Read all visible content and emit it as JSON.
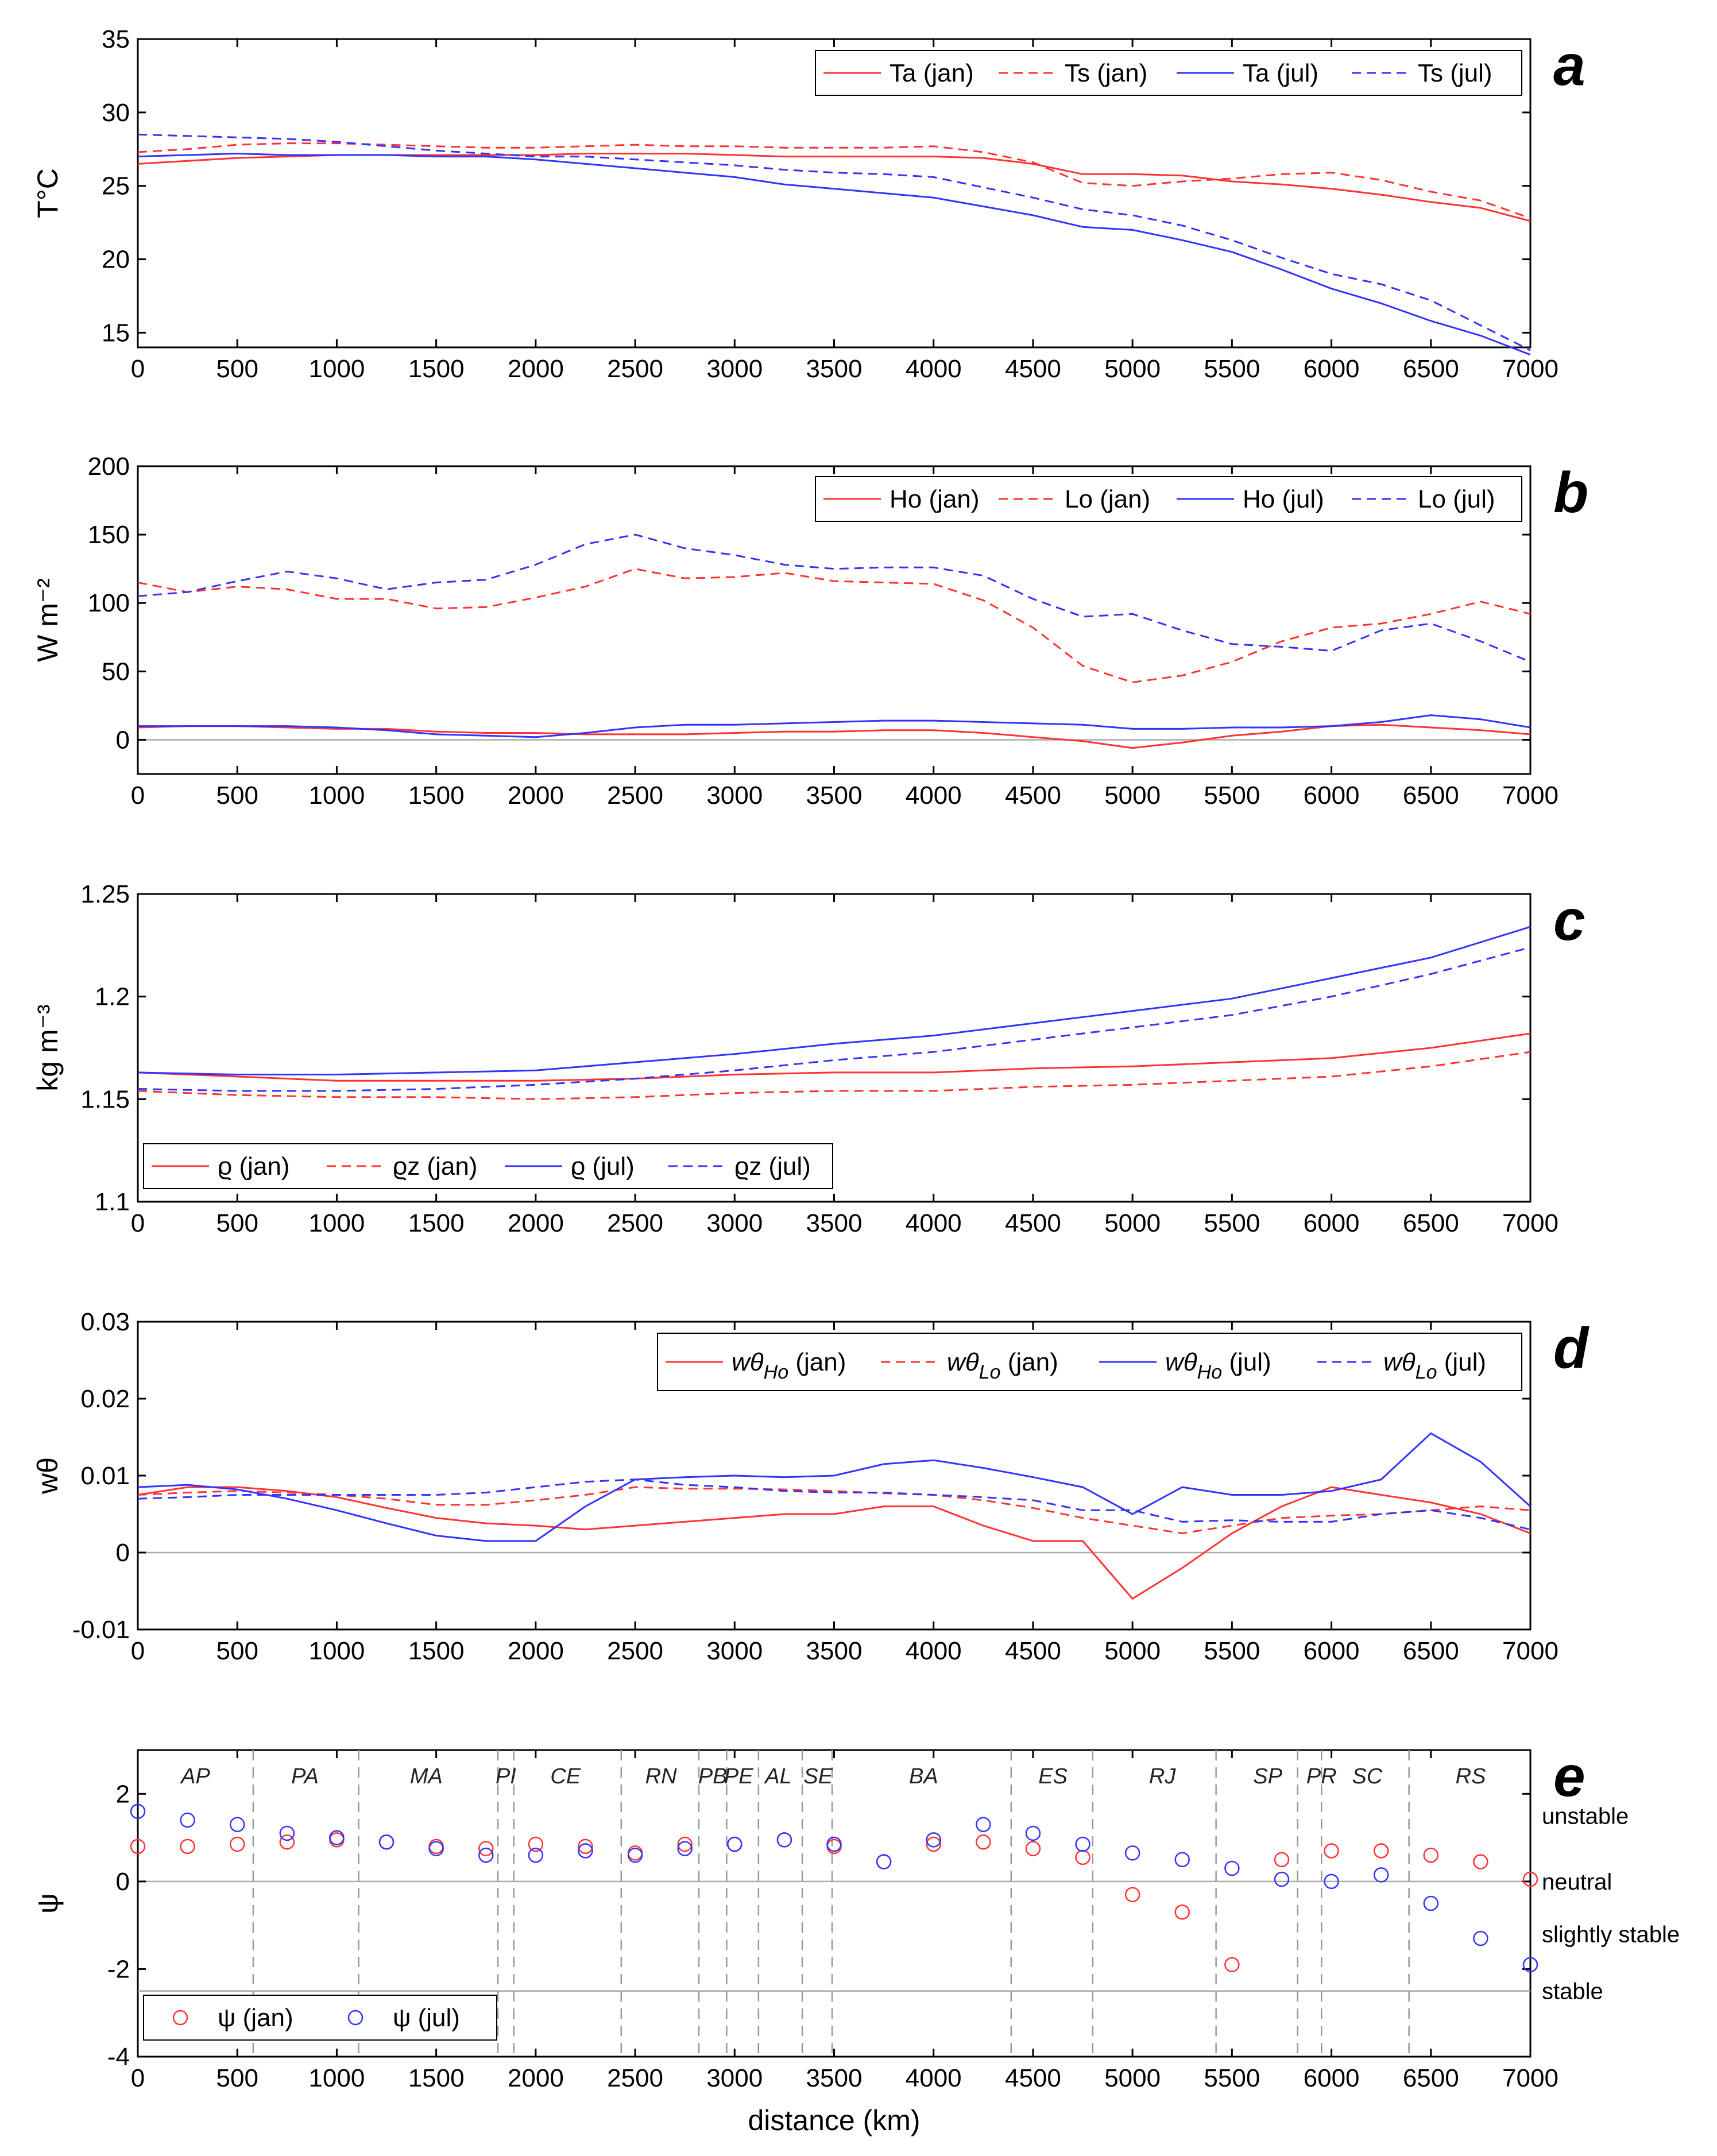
{
  "figure": {
    "xlabel": "distance (km)",
    "xticks": [
      0,
      500,
      1000,
      1500,
      2000,
      2500,
      3000,
      3500,
      4000,
      4500,
      5000,
      5500,
      6000,
      6500,
      7000
    ],
    "colors": {
      "jan": "#ff3333",
      "jul": "#3333ff",
      "zero": "#aaaaaa",
      "region": "#999999"
    }
  },
  "chart_data": [
    {
      "letter": "a",
      "type": "line",
      "ylabel": "T°C",
      "ylim": [
        14,
        35
      ],
      "yticks": [
        15,
        20,
        25,
        30,
        35
      ],
      "xlim": [
        0,
        7000
      ],
      "legend": {
        "placement": "top-right",
        "entries": [
          "Ta (jan)",
          "Ts (jan)",
          "Ta (jul)",
          "Ts (jul)"
        ]
      },
      "x": [
        0,
        250,
        500,
        750,
        1000,
        1250,
        1500,
        1750,
        2000,
        2250,
        2500,
        2750,
        3000,
        3250,
        3500,
        3750,
        4000,
        4250,
        4500,
        4750,
        5000,
        5250,
        5500,
        5750,
        6000,
        6250,
        6500,
        6750,
        7000
      ],
      "series": [
        {
          "name": "Ta (jan)",
          "color": "jan",
          "dash": false,
          "values": [
            26.5,
            26.7,
            26.9,
            27.0,
            27.1,
            27.1,
            27.1,
            27.1,
            27.1,
            27.2,
            27.2,
            27.2,
            27.1,
            27.0,
            27.0,
            27.0,
            27.0,
            26.9,
            26.5,
            25.8,
            25.8,
            25.7,
            25.3,
            25.1,
            24.8,
            24.4,
            23.9,
            23.5,
            22.6
          ]
        },
        {
          "name": "Ts (jan)",
          "color": "jan",
          "dash": true,
          "values": [
            27.3,
            27.5,
            27.8,
            27.9,
            27.9,
            27.8,
            27.7,
            27.6,
            27.6,
            27.7,
            27.8,
            27.7,
            27.7,
            27.6,
            27.6,
            27.6,
            27.7,
            27.3,
            26.6,
            25.2,
            25.0,
            25.3,
            25.5,
            25.8,
            25.9,
            25.4,
            24.6,
            24.0,
            22.8
          ]
        },
        {
          "name": "Ta (jul)",
          "color": "jul",
          "dash": false,
          "values": [
            27.0,
            27.1,
            27.2,
            27.1,
            27.1,
            27.1,
            27.0,
            27.0,
            26.8,
            26.5,
            26.2,
            25.9,
            25.6,
            25.1,
            24.8,
            24.5,
            24.2,
            23.6,
            23.0,
            22.2,
            22.0,
            21.3,
            20.5,
            19.3,
            18.0,
            17.0,
            15.8,
            14.8,
            13.5
          ]
        },
        {
          "name": "Ts (jul)",
          "color": "jul",
          "dash": true,
          "values": [
            28.5,
            28.4,
            28.3,
            28.2,
            28.0,
            27.7,
            27.4,
            27.2,
            27.0,
            27.0,
            26.8,
            26.6,
            26.4,
            26.1,
            25.9,
            25.8,
            25.6,
            24.9,
            24.2,
            23.4,
            23.0,
            22.3,
            21.3,
            20.1,
            19.0,
            18.3,
            17.2,
            15.5,
            13.8
          ]
        }
      ]
    },
    {
      "letter": "b",
      "type": "line",
      "ylabel": "W m⁻²",
      "ylim": [
        -25,
        200
      ],
      "yticks": [
        0,
        50,
        100,
        150,
        200
      ],
      "xlim": [
        0,
        7000
      ],
      "zero_line": true,
      "legend": {
        "placement": "top-right",
        "entries": [
          "Ho (jan)",
          "Lo (jan)",
          "Ho (jul)",
          "Lo (jul)"
        ]
      },
      "x": [
        0,
        250,
        500,
        750,
        1000,
        1250,
        1500,
        1750,
        2000,
        2250,
        2500,
        2750,
        3000,
        3250,
        3500,
        3750,
        4000,
        4250,
        4500,
        4750,
        5000,
        5250,
        5500,
        5750,
        6000,
        6250,
        6500,
        6750,
        7000
      ],
      "series": [
        {
          "name": "Ho (jan)",
          "color": "jan",
          "dash": false,
          "values": [
            9,
            10,
            10,
            9,
            8,
            8,
            6,
            5,
            5,
            4,
            4,
            4,
            5,
            6,
            6,
            7,
            7,
            5,
            2,
            -1,
            -6,
            -2,
            3,
            6,
            10,
            11,
            9,
            7,
            4
          ]
        },
        {
          "name": "Lo (jan)",
          "color": "jan",
          "dash": true,
          "values": [
            115,
            108,
            112,
            110,
            103,
            103,
            96,
            97,
            104,
            112,
            125,
            118,
            119,
            122,
            116,
            115,
            114,
            102,
            82,
            54,
            42,
            47,
            57,
            72,
            82,
            85,
            92,
            101,
            92
          ]
        },
        {
          "name": "Ho (jul)",
          "color": "jul",
          "dash": false,
          "values": [
            10,
            10,
            10,
            10,
            9,
            7,
            4,
            3,
            2,
            5,
            9,
            11,
            11,
            12,
            13,
            14,
            14,
            13,
            12,
            11,
            8,
            8,
            9,
            9,
            10,
            13,
            18,
            15,
            9
          ]
        },
        {
          "name": "Lo (jul)",
          "color": "jul",
          "dash": true,
          "values": [
            105,
            108,
            116,
            123,
            118,
            110,
            115,
            117,
            128,
            143,
            150,
            140,
            135,
            128,
            125,
            126,
            126,
            120,
            103,
            90,
            92,
            80,
            70,
            68,
            65,
            80,
            85,
            72,
            57
          ]
        }
      ]
    },
    {
      "letter": "c",
      "type": "line",
      "ylabel": "kg m⁻³",
      "ylim": [
        1.1,
        1.25
      ],
      "yticks": [
        1.1,
        1.15,
        1.2,
        1.25
      ],
      "xlim": [
        0,
        7000
      ],
      "legend": {
        "placement": "bottom-left",
        "entries": [
          "ϱ (jan)",
          "ϱz (jan)",
          "ϱ (jul)",
          "ϱz (jul)"
        ]
      },
      "x": [
        0,
        500,
        1000,
        1500,
        2000,
        2500,
        3000,
        3500,
        4000,
        4500,
        5000,
        5500,
        6000,
        6500,
        7000
      ],
      "series": [
        {
          "name": "ϱ (jan)",
          "color": "jan",
          "dash": false,
          "values": [
            1.163,
            1.161,
            1.159,
            1.159,
            1.159,
            1.16,
            1.162,
            1.163,
            1.163,
            1.165,
            1.166,
            1.168,
            1.17,
            1.175,
            1.182
          ]
        },
        {
          "name": "ϱz (jan)",
          "color": "jan",
          "dash": true,
          "values": [
            1.154,
            1.152,
            1.151,
            1.151,
            1.15,
            1.151,
            1.153,
            1.154,
            1.154,
            1.156,
            1.157,
            1.159,
            1.161,
            1.166,
            1.173
          ]
        },
        {
          "name": "ϱ (jul)",
          "color": "jul",
          "dash": false,
          "values": [
            1.163,
            1.162,
            1.162,
            1.163,
            1.164,
            1.168,
            1.172,
            1.177,
            1.181,
            1.187,
            1.193,
            1.199,
            1.209,
            1.219,
            1.234
          ]
        },
        {
          "name": "ϱz (jul)",
          "color": "jul",
          "dash": true,
          "values": [
            1.155,
            1.154,
            1.154,
            1.155,
            1.157,
            1.16,
            1.164,
            1.169,
            1.173,
            1.179,
            1.185,
            1.191,
            1.2,
            1.211,
            1.224
          ]
        }
      ]
    },
    {
      "letter": "d",
      "type": "line",
      "ylabel": "wθ",
      "ylim": [
        -0.01,
        0.03
      ],
      "yticks": [
        -0.01,
        0,
        0.01,
        0.02,
        0.03
      ],
      "xlim": [
        0,
        7000
      ],
      "zero_line": true,
      "legend": {
        "placement": "top-right",
        "entries": [
          "wθ (jan)",
          "wθ (jan)",
          "wθ (jul)",
          "wθ (jul)"
        ],
        "subscripts": [
          "Ho",
          "Lo",
          "Ho",
          "Lo"
        ]
      },
      "x": [
        0,
        250,
        500,
        750,
        1000,
        1250,
        1500,
        1750,
        2000,
        2250,
        2500,
        2750,
        3000,
        3250,
        3500,
        3750,
        4000,
        4250,
        4500,
        4750,
        5000,
        5250,
        5500,
        5750,
        6000,
        6250,
        6500,
        6750,
        7000
      ],
      "series": [
        {
          "name": "wθHo (jan)",
          "color": "jan",
          "dash": false,
          "values": [
            0.0075,
            0.0085,
            0.0085,
            0.008,
            0.0072,
            0.0058,
            0.0045,
            0.0038,
            0.0035,
            0.003,
            0.0035,
            0.004,
            0.0045,
            0.005,
            0.005,
            0.006,
            0.006,
            0.0035,
            0.0015,
            0.0015,
            -0.006,
            -0.002,
            0.0025,
            0.006,
            0.0085,
            0.0075,
            0.0065,
            0.005,
            0.0025
          ]
        },
        {
          "name": "wθLo (jan)",
          "color": "jan",
          "dash": true,
          "values": [
            0.0075,
            0.0078,
            0.008,
            0.0078,
            0.0075,
            0.007,
            0.0062,
            0.0062,
            0.0068,
            0.0075,
            0.0085,
            0.0083,
            0.0083,
            0.0082,
            0.008,
            0.0077,
            0.0075,
            0.0068,
            0.0058,
            0.0045,
            0.0035,
            0.0025,
            0.0035,
            0.0045,
            0.0048,
            0.005,
            0.0055,
            0.006,
            0.0055
          ]
        },
        {
          "name": "wθHo (jul)",
          "color": "jul",
          "dash": false,
          "values": [
            0.0085,
            0.0088,
            0.0082,
            0.007,
            0.0055,
            0.0038,
            0.0022,
            0.0015,
            0.0015,
            0.006,
            0.0095,
            0.0098,
            0.01,
            0.0098,
            0.01,
            0.0115,
            0.012,
            0.011,
            0.0098,
            0.0085,
            0.005,
            0.0085,
            0.0075,
            0.0075,
            0.008,
            0.0095,
            0.0155,
            0.0118,
            0.006
          ]
        },
        {
          "name": "wθLo (jul)",
          "color": "jul",
          "dash": true,
          "values": [
            0.007,
            0.0072,
            0.0075,
            0.0075,
            0.0075,
            0.0075,
            0.0075,
            0.0078,
            0.0085,
            0.0092,
            0.0095,
            0.0088,
            0.0085,
            0.008,
            0.0078,
            0.0078,
            0.0075,
            0.0072,
            0.0068,
            0.0055,
            0.0055,
            0.004,
            0.0042,
            0.004,
            0.004,
            0.005,
            0.0055,
            0.0045,
            0.003
          ]
        }
      ]
    },
    {
      "letter": "e",
      "type": "scatter",
      "ylabel": "ψ",
      "ylim": [
        -4,
        3
      ],
      "yticks": [
        -4,
        -2,
        0,
        2
      ],
      "xlim": [
        0,
        7000
      ],
      "zero_line": true,
      "stable_line": -2.5,
      "legend": {
        "placement": "bottom-left",
        "entries": [
          "ψ (jan)",
          "ψ (jul)"
        ]
      },
      "regions": {
        "labels": [
          "AP",
          "PA",
          "MA",
          "PI",
          "CE",
          "RN",
          "PB",
          "PE",
          "AL",
          "SE",
          "BA",
          "ES",
          "RJ",
          "SP",
          "PR",
          "SC",
          "RS"
        ],
        "label_x": [
          290,
          840,
          1450,
          1850,
          2150,
          2630,
          2890,
          3020,
          3220,
          3420,
          3950,
          4600,
          5150,
          5680,
          5950,
          6180,
          6700
        ],
        "boundaries": [
          580,
          1110,
          1810,
          1890,
          2430,
          2820,
          2960,
          3120,
          3340,
          3490,
          4390,
          4800,
          5420,
          5830,
          5950,
          6390
        ]
      },
      "stability_labels": [
        {
          "text": "unstable",
          "y": 1.5
        },
        {
          "text": "neutral",
          "y": 0
        },
        {
          "text": "slightly stable",
          "y": -1.2
        },
        {
          "text": "stable",
          "y": -2.5
        }
      ],
      "x": [
        0,
        250,
        500,
        750,
        1000,
        1250,
        1500,
        1750,
        2000,
        2250,
        2500,
        2750,
        3000,
        3250,
        3500,
        3750,
        4000,
        4250,
        4500,
        4750,
        5000,
        5250,
        5500,
        5750,
        6000,
        6250,
        6500,
        6750,
        7000
      ],
      "series": [
        {
          "name": "ψ (jan)",
          "color": "jan",
          "values": [
            0.8,
            0.8,
            0.85,
            0.9,
            0.95,
            0.9,
            0.8,
            0.75,
            0.85,
            0.8,
            0.65,
            0.85,
            0.85,
            0.95,
            0.8,
            0.45,
            0.85,
            0.9,
            0.75,
            0.55,
            -0.3,
            -0.7,
            -1.9,
            0.5,
            0.7,
            0.7,
            0.6,
            0.45,
            0.05
          ]
        },
        {
          "name": "ψ (jul)",
          "color": "jul",
          "values": [
            1.6,
            1.4,
            1.3,
            1.1,
            1.0,
            0.9,
            0.75,
            0.6,
            0.6,
            0.7,
            0.6,
            0.75,
            0.85,
            0.95,
            0.85,
            0.45,
            0.95,
            1.3,
            1.1,
            0.85,
            0.65,
            0.5,
            0.3,
            0.05,
            0.0,
            0.15,
            -0.5,
            -1.3,
            -1.9
          ]
        }
      ]
    }
  ]
}
